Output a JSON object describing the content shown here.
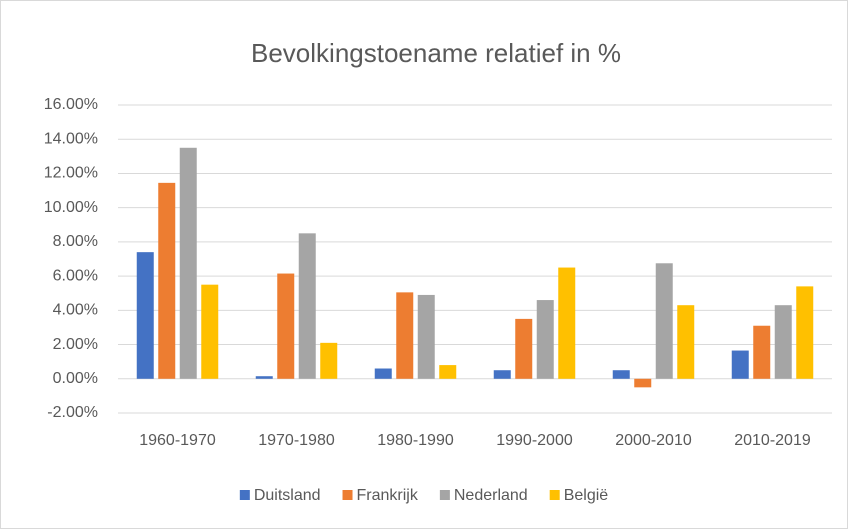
{
  "chart_data": {
    "type": "bar",
    "title": "Bevolkingstoename relatief in %",
    "categories": [
      "1960-1970",
      "1970-1980",
      "1980-1990",
      "1990-2000",
      "2000-2010",
      "2010-2019"
    ],
    "series": [
      {
        "name": "Duitsland",
        "color": "#4472c4",
        "values": [
          7.4,
          0.15,
          0.6,
          0.5,
          0.5,
          1.65
        ]
      },
      {
        "name": "Frankrijk",
        "color": "#ed7d31",
        "values": [
          11.45,
          6.15,
          5.05,
          3.5,
          -0.5,
          3.1
        ]
      },
      {
        "name": "Nederland",
        "color": "#a5a5a5",
        "values": [
          13.5,
          8.5,
          4.9,
          4.6,
          6.75,
          4.3
        ]
      },
      {
        "name": "België",
        "color": "#ffc000",
        "values": [
          5.5,
          2.1,
          0.8,
          6.5,
          4.3,
          5.4
        ]
      }
    ],
    "ylim": [
      -2,
      16
    ],
    "yticks": [
      {
        "value": -2,
        "label": "-2.00%"
      },
      {
        "value": 0,
        "label": "0.00%"
      },
      {
        "value": 2,
        "label": "2.00%"
      },
      {
        "value": 4,
        "label": "4.00%"
      },
      {
        "value": 6,
        "label": "6.00%"
      },
      {
        "value": 8,
        "label": "8.00%"
      },
      {
        "value": 10,
        "label": "10.00%"
      },
      {
        "value": 12,
        "label": "12.00%"
      },
      {
        "value": 14,
        "label": "14.00%"
      },
      {
        "value": 16,
        "label": "16.00%"
      }
    ],
    "grid": true,
    "legend": "bottom"
  }
}
